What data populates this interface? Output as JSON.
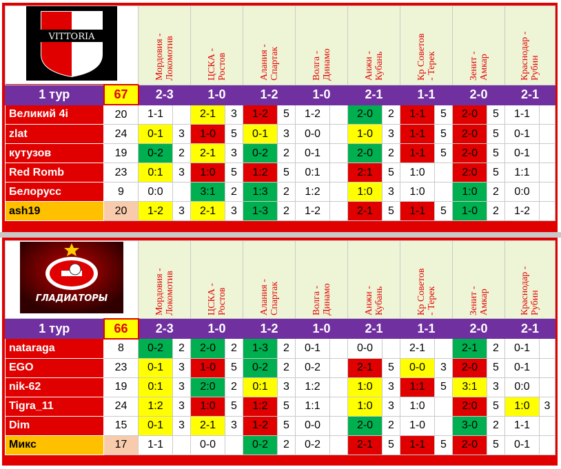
{
  "matches": [
    "Мордовия - Локомотив",
    "ЦСКА - Ростов",
    "Алания - Спартак",
    "Волга - Динамо",
    "Анжи - Кубань",
    "Кр Советов - Терек",
    "Зенит - Амкар",
    "Краснодар - Рубин"
  ],
  "matches_display": [
    "Мордовия -\nЛокомотив",
    "ЦСКА -\nРостов",
    "Алания -\nСпартак",
    "Волга -\nДинамо",
    "Анжи -\nКубань",
    "Кр Советов\n- Терек",
    "Зенит -\nАмкар",
    "Краснодар -\nРубин"
  ],
  "colors": {
    "yellow": "#ffff00",
    "red": "#e00000",
    "green": "#00b050",
    "purple": "#7030a0",
    "mix_name": "#ffc000",
    "mix_total": "#f8cbad"
  },
  "top": {
    "logo_text": "VITTORIA",
    "tour_label": "1 тур",
    "tour_total": "67",
    "results": [
      "2-3",
      "1-0",
      "1-2",
      "1-0",
      "2-1",
      "1-1",
      "2-0",
      "2-1"
    ],
    "players": [
      {
        "name": "Великий 4i",
        "total": "20",
        "mix": false,
        "cells": [
          {
            "p": "1-1",
            "pts": "",
            "c": ""
          },
          {
            "p": "2-1",
            "pts": "3",
            "c": "y"
          },
          {
            "p": "1-2",
            "pts": "5",
            "c": "r"
          },
          {
            "p": "1-2",
            "pts": "",
            "c": ""
          },
          {
            "p": "2-0",
            "pts": "2",
            "c": "g"
          },
          {
            "p": "1-1",
            "pts": "5",
            "c": "r"
          },
          {
            "p": "2-0",
            "pts": "5",
            "c": "r"
          },
          {
            "p": "1-1",
            "pts": "",
            "c": ""
          }
        ]
      },
      {
        "name": "zlat",
        "total": "24",
        "mix": false,
        "cells": [
          {
            "p": "0-1",
            "pts": "3",
            "c": "y"
          },
          {
            "p": "1-0",
            "pts": "5",
            "c": "r"
          },
          {
            "p": "0-1",
            "pts": "3",
            "c": "y"
          },
          {
            "p": "0-0",
            "pts": "",
            "c": ""
          },
          {
            "p": "1-0",
            "pts": "3",
            "c": "y"
          },
          {
            "p": "1-1",
            "pts": "5",
            "c": "r"
          },
          {
            "p": "2-0",
            "pts": "5",
            "c": "r"
          },
          {
            "p": "0-1",
            "pts": "",
            "c": ""
          }
        ]
      },
      {
        "name": "кутузов",
        "total": "19",
        "mix": false,
        "cells": [
          {
            "p": "0-2",
            "pts": "2",
            "c": "g"
          },
          {
            "p": "2-1",
            "pts": "3",
            "c": "y"
          },
          {
            "p": "0-2",
            "pts": "2",
            "c": "g"
          },
          {
            "p": "0-1",
            "pts": "",
            "c": ""
          },
          {
            "p": "2-0",
            "pts": "2",
            "c": "g"
          },
          {
            "p": "1-1",
            "pts": "5",
            "c": "r"
          },
          {
            "p": "2-0",
            "pts": "5",
            "c": "r"
          },
          {
            "p": "0-1",
            "pts": "",
            "c": ""
          }
        ]
      },
      {
        "name": "Red Romb",
        "total": "23",
        "mix": false,
        "cells": [
          {
            "p": "0:1",
            "pts": "3",
            "c": "y"
          },
          {
            "p": "1:0",
            "pts": "5",
            "c": "r"
          },
          {
            "p": "1:2",
            "pts": "5",
            "c": "r"
          },
          {
            "p": "0:1",
            "pts": "",
            "c": ""
          },
          {
            "p": "2:1",
            "pts": "5",
            "c": "r"
          },
          {
            "p": "1:0",
            "pts": "",
            "c": ""
          },
          {
            "p": "2:0",
            "pts": "5",
            "c": "r"
          },
          {
            "p": "1:1",
            "pts": "",
            "c": ""
          }
        ]
      },
      {
        "name": "Белорусс",
        "total": "9",
        "mix": false,
        "cells": [
          {
            "p": "0:0",
            "pts": "",
            "c": ""
          },
          {
            "p": "3:1",
            "pts": "2",
            "c": "g"
          },
          {
            "p": "1:3",
            "pts": "2",
            "c": "g"
          },
          {
            "p": "1:2",
            "pts": "",
            "c": ""
          },
          {
            "p": "1:0",
            "pts": "3",
            "c": "y"
          },
          {
            "p": "1:0",
            "pts": "",
            "c": ""
          },
          {
            "p": "1:0",
            "pts": "2",
            "c": "g"
          },
          {
            "p": "0:0",
            "pts": "",
            "c": ""
          }
        ]
      },
      {
        "name": "ash19",
        "total": "20",
        "mix": true,
        "cells": [
          {
            "p": "1-2",
            "pts": "3",
            "c": "y"
          },
          {
            "p": "2-1",
            "pts": "3",
            "c": "y"
          },
          {
            "p": "1-3",
            "pts": "2",
            "c": "g"
          },
          {
            "p": "1-2",
            "pts": "",
            "c": ""
          },
          {
            "p": "2-1",
            "pts": "5",
            "c": "r"
          },
          {
            "p": "1-1",
            "pts": "5",
            "c": "r"
          },
          {
            "p": "1-0",
            "pts": "2",
            "c": "g"
          },
          {
            "p": "1-2",
            "pts": "",
            "c": ""
          }
        ]
      }
    ]
  },
  "bottom": {
    "logo_text": "ГЛАДИАТОРЫ",
    "tour_label": "1 тур",
    "tour_total": "66",
    "results": [
      "2-3",
      "1-0",
      "1-2",
      "1-0",
      "2-1",
      "1-1",
      "2-0",
      "2-1"
    ],
    "players": [
      {
        "name": "nataraga",
        "total": "8",
        "mix": false,
        "cells": [
          {
            "p": "0-2",
            "pts": "2",
            "c": "g"
          },
          {
            "p": "2-0",
            "pts": "2",
            "c": "g"
          },
          {
            "p": "1-3",
            "pts": "2",
            "c": "g"
          },
          {
            "p": "0-1",
            "pts": "",
            "c": ""
          },
          {
            "p": "0-0",
            "pts": "",
            "c": ""
          },
          {
            "p": "2-1",
            "pts": "",
            "c": ""
          },
          {
            "p": "2-1",
            "pts": "2",
            "c": "g"
          },
          {
            "p": "0-1",
            "pts": "",
            "c": ""
          }
        ]
      },
      {
        "name": "EGO",
        "total": "23",
        "mix": false,
        "cells": [
          {
            "p": "0-1",
            "pts": "3",
            "c": "y"
          },
          {
            "p": "1-0",
            "pts": "5",
            "c": "r"
          },
          {
            "p": "0-2",
            "pts": "2",
            "c": "g"
          },
          {
            "p": "0-2",
            "pts": "",
            "c": ""
          },
          {
            "p": "2-1",
            "pts": "5",
            "c": "r"
          },
          {
            "p": "0-0",
            "pts": "3",
            "c": "y"
          },
          {
            "p": "2-0",
            "pts": "5",
            "c": "r"
          },
          {
            "p": "0-1",
            "pts": "",
            "c": ""
          }
        ]
      },
      {
        "name": "nik-62",
        "total": "19",
        "mix": false,
        "cells": [
          {
            "p": "0:1",
            "pts": "3",
            "c": "y"
          },
          {
            "p": "2:0",
            "pts": "2",
            "c": "g"
          },
          {
            "p": "0:1",
            "pts": "3",
            "c": "y"
          },
          {
            "p": "1:2",
            "pts": "",
            "c": ""
          },
          {
            "p": "1:0",
            "pts": "3",
            "c": "y"
          },
          {
            "p": "1:1",
            "pts": "5",
            "c": "r"
          },
          {
            "p": "3:1",
            "pts": "3",
            "c": "y"
          },
          {
            "p": "0:0",
            "pts": "",
            "c": ""
          }
        ]
      },
      {
        "name": "Tigra_11",
        "total": "24",
        "mix": false,
        "cells": [
          {
            "p": "1:2",
            "pts": "3",
            "c": "y"
          },
          {
            "p": "1:0",
            "pts": "5",
            "c": "r"
          },
          {
            "p": "1:2",
            "pts": "5",
            "c": "r"
          },
          {
            "p": "1:1",
            "pts": "",
            "c": ""
          },
          {
            "p": "1:0",
            "pts": "3",
            "c": "y"
          },
          {
            "p": "1:0",
            "pts": "",
            "c": ""
          },
          {
            "p": "2:0",
            "pts": "5",
            "c": "r"
          },
          {
            "p": "1:0",
            "pts": "3",
            "c": "y"
          }
        ]
      },
      {
        "name": "Dim",
        "total": "15",
        "mix": false,
        "cells": [
          {
            "p": "0-1",
            "pts": "3",
            "c": "y"
          },
          {
            "p": "2-1",
            "pts": "3",
            "c": "y"
          },
          {
            "p": "1-2",
            "pts": "5",
            "c": "r"
          },
          {
            "p": "0-0",
            "pts": "",
            "c": ""
          },
          {
            "p": "2-0",
            "pts": "2",
            "c": "g"
          },
          {
            "p": "1-0",
            "pts": "",
            "c": ""
          },
          {
            "p": "3-0",
            "pts": "2",
            "c": "g"
          },
          {
            "p": "1-1",
            "pts": "",
            "c": ""
          }
        ]
      },
      {
        "name": "Микс",
        "total": "17",
        "mix": true,
        "cells": [
          {
            "p": "1-1",
            "pts": "",
            "c": ""
          },
          {
            "p": "0-0",
            "pts": "",
            "c": ""
          },
          {
            "p": "0-2",
            "pts": "2",
            "c": "g"
          },
          {
            "p": "0-2",
            "pts": "",
            "c": ""
          },
          {
            "p": "2-1",
            "pts": "5",
            "c": "r"
          },
          {
            "p": "1-1",
            "pts": "5",
            "c": "r"
          },
          {
            "p": "2-0",
            "pts": "5",
            "c": "r"
          },
          {
            "p": "0-1",
            "pts": "",
            "c": ""
          }
        ]
      }
    ]
  }
}
